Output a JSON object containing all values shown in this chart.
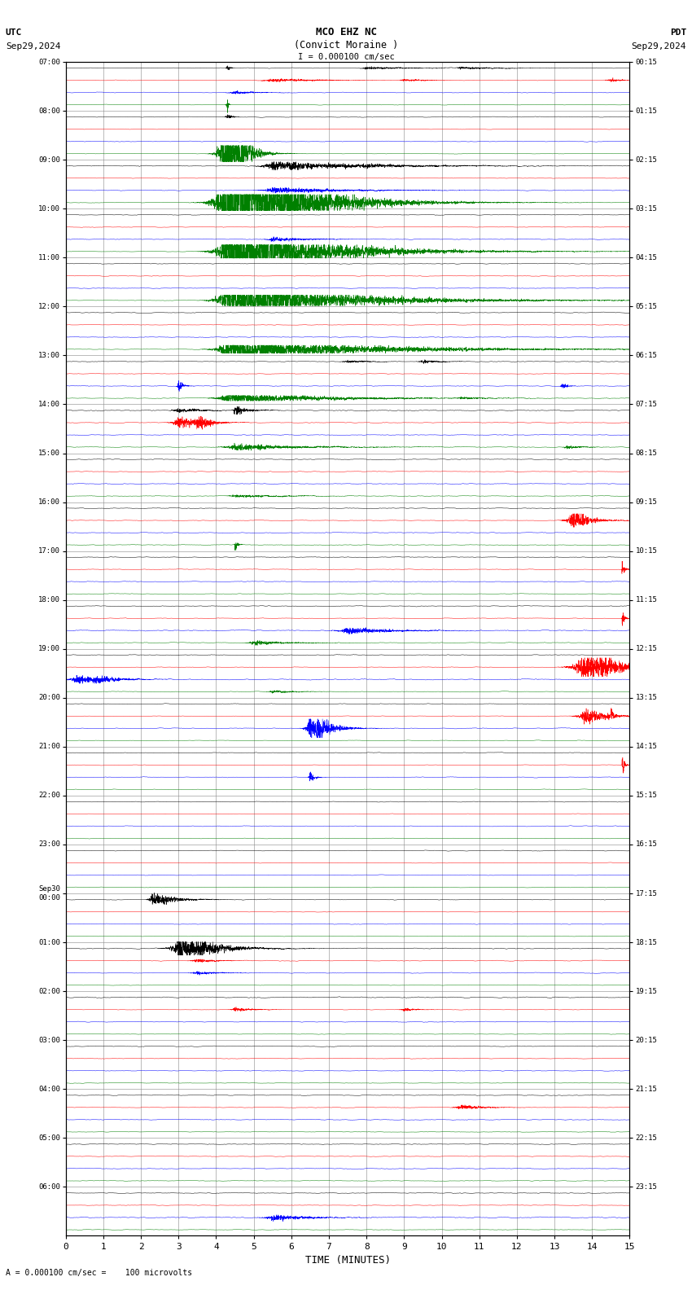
{
  "title_line1": "MCO EHZ NC",
  "title_line2": "(Convict Moraine )",
  "title_scale": "I = 0.000100 cm/sec",
  "utc_label": "UTC",
  "pdt_label": "PDT",
  "date_left": "Sep29,2024",
  "date_right": "Sep29,2024",
  "xlabel": "TIME (MINUTES)",
  "bottom_note": "= 0.000100 cm/sec =    100 microvolts",
  "xlim": [
    0,
    15
  ],
  "xticks": [
    0,
    1,
    2,
    3,
    4,
    5,
    6,
    7,
    8,
    9,
    10,
    11,
    12,
    13,
    14,
    15
  ],
  "bg_color": "#ffffff",
  "plot_bg_color": "#ffffff",
  "grid_color": "#888888",
  "trace_colors": [
    "black",
    "red",
    "blue",
    "green"
  ],
  "left_labels": [
    "07:00",
    "08:00",
    "09:00",
    "10:00",
    "11:00",
    "12:00",
    "13:00",
    "14:00",
    "15:00",
    "16:00",
    "17:00",
    "18:00",
    "19:00",
    "20:00",
    "21:00",
    "22:00",
    "23:00",
    "Sep30\n00:00",
    "01:00",
    "02:00",
    "03:00",
    "04:00",
    "05:00",
    "06:00"
  ],
  "right_labels": [
    "00:15",
    "01:15",
    "02:15",
    "03:15",
    "04:15",
    "05:15",
    "06:15",
    "07:15",
    "08:15",
    "09:15",
    "10:15",
    "11:15",
    "12:15",
    "13:15",
    "14:15",
    "15:15",
    "16:15",
    "17:15",
    "18:15",
    "19:15",
    "20:15",
    "21:15",
    "22:15",
    "23:15"
  ],
  "n_rows": 24,
  "traces_per_row": 4,
  "seed": 12345
}
